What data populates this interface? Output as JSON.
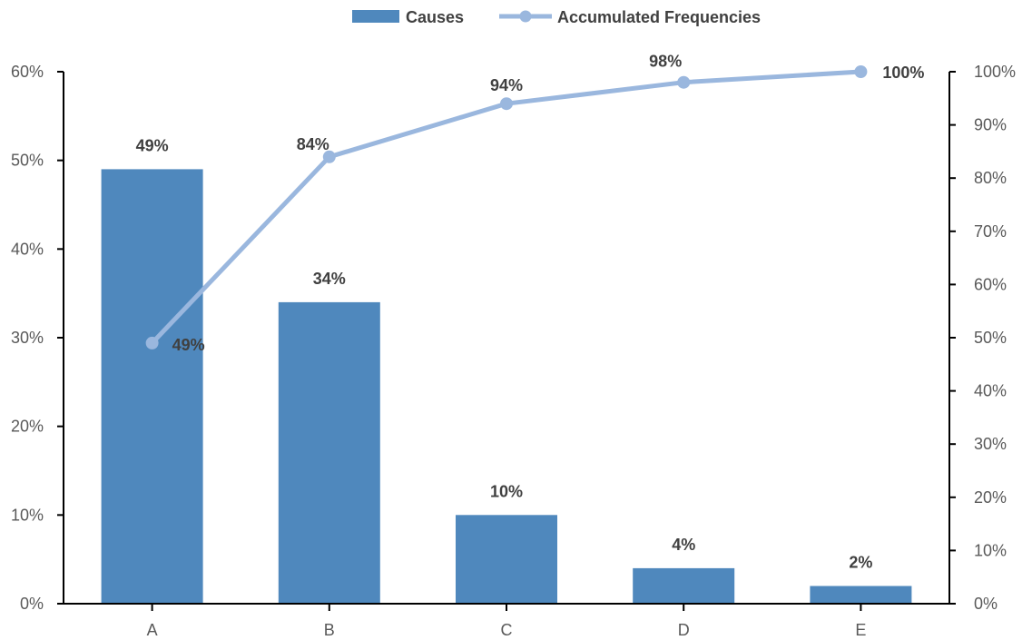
{
  "colors": {
    "bar": "#4f88bd",
    "line": "#9ab7de",
    "axis": "#000000",
    "text": "#595959",
    "label": "#404040"
  },
  "chart_data": {
    "type": "bar",
    "categories": [
      "A",
      "B",
      "C",
      "D",
      "E"
    ],
    "series": [
      {
        "name": "Causes",
        "type": "bar",
        "axis": "left",
        "values": [
          49,
          34,
          10,
          4,
          2
        ],
        "labels": [
          "49%",
          "34%",
          "10%",
          "4%",
          "2%"
        ]
      },
      {
        "name": "Accumulated Frequencies",
        "type": "line",
        "axis": "right",
        "values": [
          49,
          84,
          94,
          98,
          100
        ],
        "labels": [
          "49%",
          "84%",
          "94%",
          "98%",
          "100%"
        ]
      }
    ],
    "y_left": {
      "range": [
        0,
        60
      ],
      "ticks": [
        0,
        10,
        20,
        30,
        40,
        50,
        60
      ],
      "tick_labels": [
        "0%",
        "10%",
        "20%",
        "30%",
        "40%",
        "50%",
        "60%"
      ]
    },
    "y_right": {
      "range": [
        0,
        100
      ],
      "ticks": [
        0,
        10,
        20,
        30,
        40,
        50,
        60,
        70,
        80,
        90,
        100
      ],
      "tick_labels": [
        "0%",
        "10%",
        "20%",
        "30%",
        "40%",
        "50%",
        "60%",
        "70%",
        "80%",
        "90%",
        "100%"
      ]
    },
    "grid": false,
    "legend_position": "top"
  }
}
